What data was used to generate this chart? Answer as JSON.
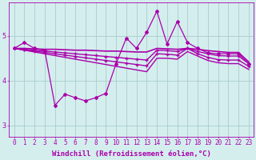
{
  "background_color": "#d4eeee",
  "grid_color": "#aacccc",
  "line_color": "#aa00aa",
  "xlabel": "Windchill (Refroidissement éolien,°C)",
  "xlabel_fontsize": 6.5,
  "tick_label_fontsize": 5.5,
  "yticks": [
    3,
    4,
    5
  ],
  "xlim": [
    -0.5,
    23.5
  ],
  "ylim": [
    2.75,
    5.75
  ],
  "series": [
    {
      "x": [
        0,
        1,
        2,
        3,
        4,
        5,
        6,
        7,
        8,
        9,
        10,
        11,
        12,
        13,
        14,
        15,
        16,
        17,
        18,
        19,
        20,
        21,
        22,
        23
      ],
      "y": [
        4.72,
        4.85,
        4.72,
        4.68,
        3.45,
        3.7,
        3.62,
        3.55,
        3.62,
        3.72,
        4.38,
        4.95,
        4.72,
        5.08,
        5.55,
        4.82,
        5.32,
        4.85,
        4.72,
        4.62,
        4.6,
        4.6,
        4.6,
        4.38
      ],
      "marker": "D",
      "markersize": 2.0,
      "linewidth": 0.9,
      "zorder": 4
    },
    {
      "x": [
        0,
        1,
        2,
        3,
        4,
        5,
        6,
        7,
        8,
        9,
        10,
        11,
        12,
        13,
        14,
        15,
        16,
        17,
        18,
        19,
        20,
        21,
        22,
        23
      ],
      "y": [
        4.72,
        4.72,
        4.71,
        4.7,
        4.7,
        4.69,
        4.68,
        4.68,
        4.67,
        4.66,
        4.66,
        4.65,
        4.64,
        4.64,
        4.72,
        4.71,
        4.7,
        4.72,
        4.7,
        4.67,
        4.65,
        4.63,
        4.63,
        4.42
      ],
      "marker": null,
      "markersize": 0,
      "linewidth": 1.2,
      "zorder": 3
    },
    {
      "x": [
        0,
        1,
        2,
        3,
        4,
        5,
        6,
        7,
        8,
        9,
        10,
        11,
        12,
        13,
        14,
        15,
        16,
        17,
        18,
        19,
        20,
        21,
        22,
        23
      ],
      "y": [
        4.72,
        4.7,
        4.68,
        4.66,
        4.64,
        4.62,
        4.6,
        4.58,
        4.56,
        4.54,
        4.52,
        4.5,
        4.48,
        4.46,
        4.68,
        4.67,
        4.65,
        4.72,
        4.65,
        4.6,
        4.56,
        4.55,
        4.55,
        4.38
      ],
      "marker": "+",
      "markersize": 2.5,
      "linewidth": 1.0,
      "zorder": 3
    },
    {
      "x": [
        0,
        1,
        2,
        3,
        4,
        5,
        6,
        7,
        8,
        9,
        10,
        11,
        12,
        13,
        14,
        15,
        16,
        17,
        18,
        19,
        20,
        21,
        22,
        23
      ],
      "y": [
        4.72,
        4.69,
        4.66,
        4.63,
        4.6,
        4.57,
        4.54,
        4.51,
        4.48,
        4.45,
        4.42,
        4.39,
        4.36,
        4.33,
        4.6,
        4.59,
        4.57,
        4.72,
        4.6,
        4.52,
        4.47,
        4.46,
        4.46,
        4.32
      ],
      "marker": "+",
      "markersize": 2.5,
      "linewidth": 1.0,
      "zorder": 3
    },
    {
      "x": [
        0,
        1,
        2,
        3,
        4,
        5,
        6,
        7,
        8,
        9,
        10,
        11,
        12,
        13,
        14,
        15,
        16,
        17,
        18,
        19,
        20,
        21,
        22,
        23
      ],
      "y": [
        4.72,
        4.68,
        4.64,
        4.6,
        4.56,
        4.52,
        4.48,
        4.44,
        4.4,
        4.36,
        4.32,
        4.28,
        4.24,
        4.2,
        4.5,
        4.5,
        4.48,
        4.65,
        4.55,
        4.45,
        4.4,
        4.38,
        4.38,
        4.25
      ],
      "marker": null,
      "markersize": 0,
      "linewidth": 1.0,
      "zorder": 2
    }
  ]
}
